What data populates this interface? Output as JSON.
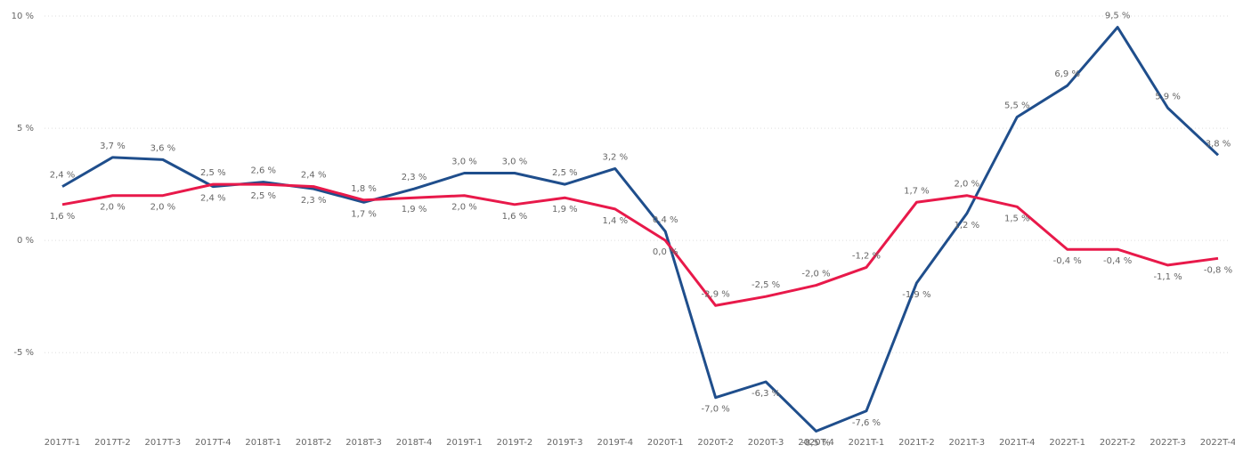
{
  "chart_data": {
    "type": "line",
    "categories": [
      "2017T-1",
      "2017T-2",
      "2017T-3",
      "2017T-4",
      "2018T-1",
      "2018T-2",
      "2018T-3",
      "2018T-4",
      "2019T-1",
      "2019T-2",
      "2019T-3",
      "2019T-4",
      "2020T-1",
      "2020T-2",
      "2020T-3",
      "2020T-4",
      "2021T-1",
      "2021T-2",
      "2021T-3",
      "2021T-4",
      "2022T-1",
      "2022T-2",
      "2022T-3",
      "2022T-4"
    ],
    "series": [
      {
        "color": "#1f4e8c",
        "values": [
          2.4,
          3.7,
          3.6,
          2.4,
          2.6,
          2.3,
          1.7,
          2.3,
          3.0,
          3.0,
          2.5,
          3.2,
          0.4,
          -7.0,
          -6.3,
          -8.5,
          -7.6,
          -1.9,
          1.2,
          5.5,
          6.9,
          9.5,
          5.9,
          3.8
        ],
        "value_labels": [
          "2,4 %",
          "3,7 %",
          "3,6 %",
          "2,4 %",
          "2,6 %",
          "2,3 %",
          "1,7 %",
          "2,3 %",
          "3,0 %",
          "3,0 %",
          "2,5 %",
          "3,2 %",
          "0,4 %",
          "-7,0 %",
          "-6,3 %",
          "-8,5 %",
          "-7,6 %",
          "-1,9 %",
          "1,2 %",
          "5,5 %",
          "6,9 %",
          "9,5 %",
          "5,9 %",
          "3,8 %"
        ]
      },
      {
        "color": "#e8194a",
        "values": [
          1.6,
          2.0,
          2.0,
          2.5,
          2.5,
          2.4,
          1.8,
          1.9,
          2.0,
          1.6,
          1.9,
          1.4,
          0.0,
          -2.9,
          -2.5,
          -2.0,
          -1.2,
          1.7,
          2.0,
          1.5,
          -0.4,
          -0.4,
          -1.1,
          -0.8
        ],
        "value_labels": [
          "1,6 %",
          "2,0 %",
          "2,0 %",
          "2,5 %",
          "2,5 %",
          "2,4 %",
          "1,8 %",
          "1,9 %",
          "2,0 %",
          "1,6 %",
          "1,9 %",
          "1,4 %",
          "0,0 %",
          "-2,9 %",
          "-2,5 %",
          "-2,0 %",
          "-1,2 %",
          "1,7 %",
          "2,0 %",
          "1,5 %",
          "-0,4 %",
          "-0,4 %",
          "-1,1 %",
          "-0,8 %"
        ]
      }
    ],
    "ylim": [
      -8.6,
      10
    ],
    "yticks": [
      {
        "value": -5,
        "label": "-5 %"
      },
      {
        "value": 0,
        "label": "0 %"
      },
      {
        "value": 5,
        "label": "5 %"
      },
      {
        "value": 10,
        "label": "10 %"
      }
    ],
    "grid": true
  }
}
